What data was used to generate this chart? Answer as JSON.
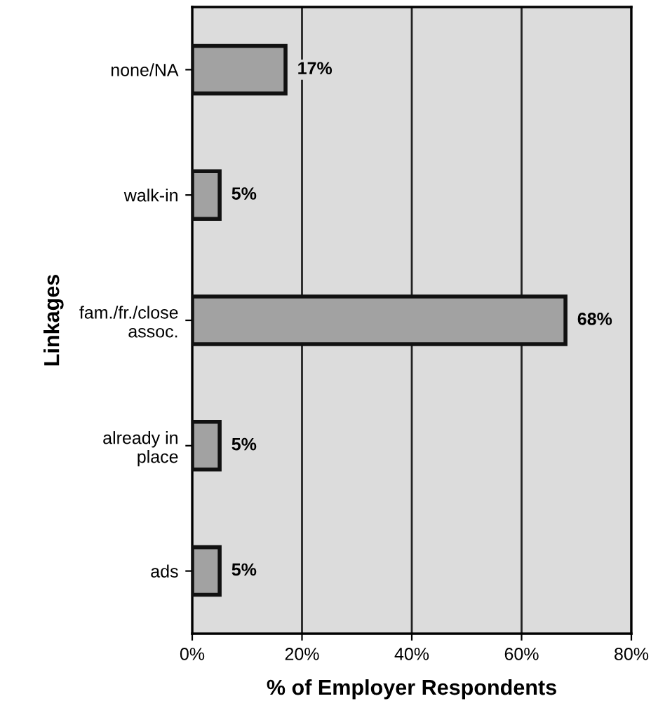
{
  "chart_data": {
    "type": "bar",
    "orientation": "horizontal",
    "ylabel": "Linkages",
    "xlabel": "% of Employer Respondents",
    "categories": [
      "none/NA",
      "walk-in",
      "fam./fr./close\nassoc.",
      "already in\nplace",
      "ads"
    ],
    "values": [
      17,
      5,
      68,
      5,
      5
    ],
    "value_labels": [
      "17%",
      "5%",
      "68%",
      "5%",
      "5%"
    ],
    "color": "#a2a2a2",
    "xlim": [
      0,
      80
    ],
    "xticks": [
      {
        "value": 0,
        "label": "0%"
      },
      {
        "value": 20,
        "label": "20%"
      },
      {
        "value": 40,
        "label": "40%"
      },
      {
        "value": 60,
        "label": "60%"
      },
      {
        "value": 80,
        "label": "80%"
      }
    ],
    "grid": "x",
    "legend": false
  }
}
